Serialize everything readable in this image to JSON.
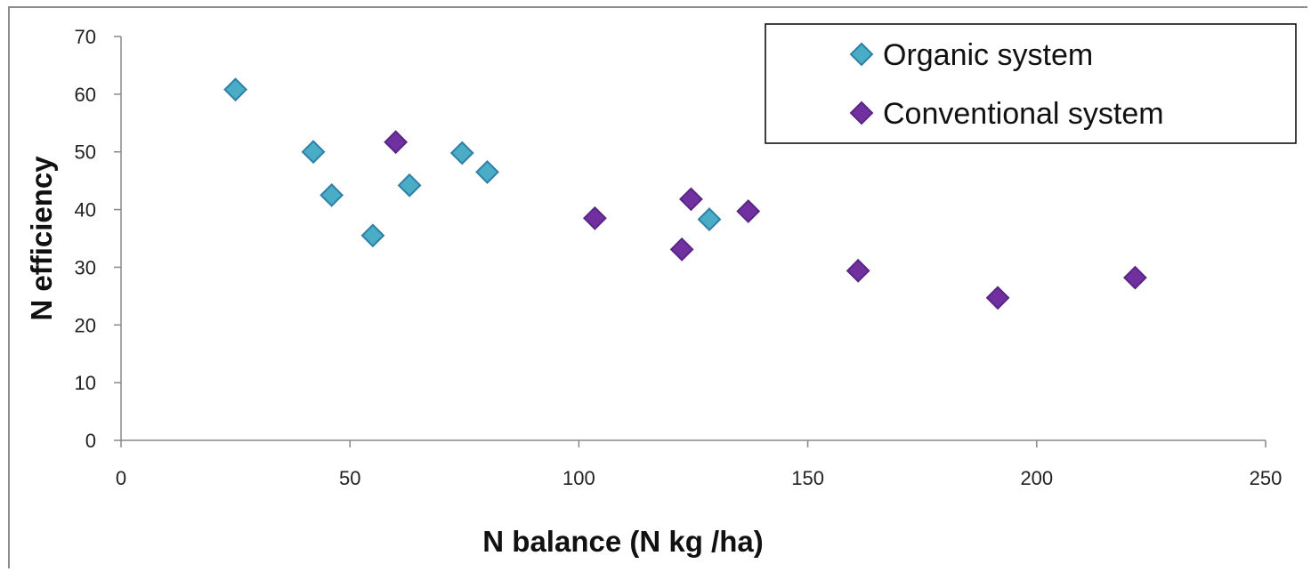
{
  "chart_data": {
    "type": "scatter",
    "title": "",
    "xlabel": "N balance (N kg /ha)",
    "ylabel": "N efficiency",
    "xlim": [
      0,
      250
    ],
    "ylim": [
      0,
      70
    ],
    "xticks": [
      0,
      50,
      100,
      150,
      200,
      250
    ],
    "yticks": [
      0,
      10,
      20,
      30,
      40,
      50,
      60,
      70
    ],
    "grid": false,
    "legend_position": "top-right",
    "marker": "diamond",
    "series": [
      {
        "name": "Organic system",
        "color": "#4bacc6",
        "edge_color": "#2e7fa8",
        "points": [
          {
            "x": 25,
            "y": 60.8
          },
          {
            "x": 42,
            "y": 50.0
          },
          {
            "x": 46,
            "y": 42.5
          },
          {
            "x": 55,
            "y": 35.5
          },
          {
            "x": 63,
            "y": 44.2
          },
          {
            "x": 74.5,
            "y": 49.8
          },
          {
            "x": 80,
            "y": 46.5
          },
          {
            "x": 128.5,
            "y": 38.3
          }
        ]
      },
      {
        "name": "Conventional system",
        "color": "#7030a0",
        "edge_color": "#5a2585",
        "points": [
          {
            "x": 60,
            "y": 51.7
          },
          {
            "x": 103.5,
            "y": 38.5
          },
          {
            "x": 122.5,
            "y": 33.1
          },
          {
            "x": 124.5,
            "y": 41.8
          },
          {
            "x": 137,
            "y": 39.7
          },
          {
            "x": 161,
            "y": 29.4
          },
          {
            "x": 191.5,
            "y": 24.7
          },
          {
            "x": 221.5,
            "y": 28.2
          }
        ]
      }
    ]
  }
}
